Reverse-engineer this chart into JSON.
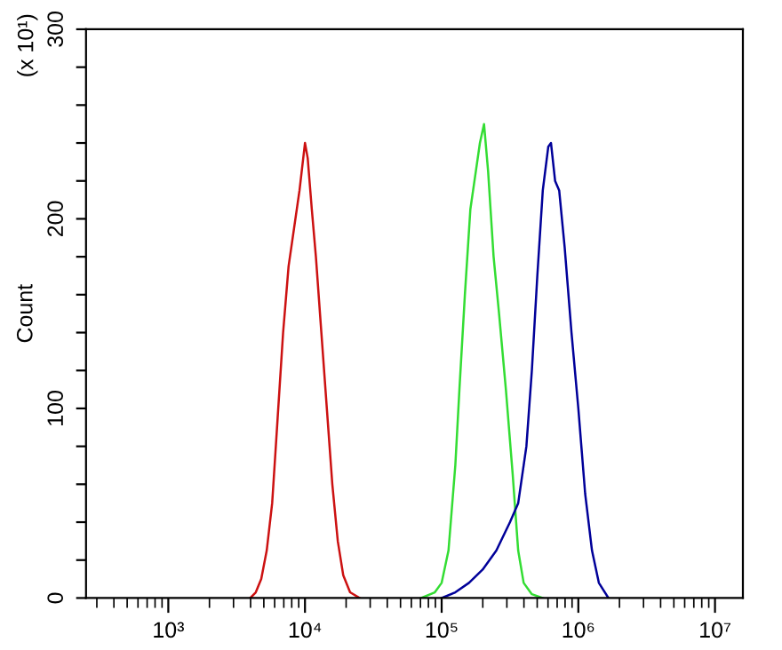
{
  "chart_data": {
    "type": "line",
    "ylabel": "Count",
    "annotations": [
      "(x 10¹)"
    ],
    "log": "x",
    "xlim": [
      250,
      16000000
    ],
    "ylim": [
      0,
      300
    ],
    "xticks": [
      {
        "value": 1000,
        "label": "10³"
      },
      {
        "value": 10000,
        "label": "10⁴"
      },
      {
        "value": 100000,
        "label": "10⁵"
      },
      {
        "value": 1000000,
        "label": "10⁶"
      },
      {
        "value": 10000000,
        "label": "10⁷"
      }
    ],
    "yticks": [
      0,
      {
        "value": 20,
        "label": null
      },
      {
        "value": 40,
        "label": null
      },
      {
        "value": 60,
        "label": null
      },
      {
        "value": 80,
        "label": null
      },
      100,
      {
        "value": 120,
        "label": null
      },
      {
        "value": 140,
        "label": null
      },
      {
        "value": 160,
        "label": null
      },
      {
        "value": 180,
        "label": null
      },
      200,
      {
        "value": 220,
        "label": null
      },
      {
        "value": 240,
        "label": null
      },
      {
        "value": 260,
        "label": null
      },
      {
        "value": 280,
        "label": null
      },
      300
    ],
    "grid": false,
    "legend": false,
    "series": [
      {
        "color": "#cc1111",
        "x": [
          3981,
          4365,
          4786,
          5248,
          5754,
          6310,
          6918,
          7586,
          8318,
          9120,
          10000,
          10470,
          11220,
          12020,
          13180,
          14450,
          15850,
          17380,
          19050,
          21380,
          25120
        ],
        "values": [
          0,
          3,
          10,
          25,
          50,
          95,
          140,
          175,
          195,
          215,
          240,
          232,
          205,
          180,
          140,
          100,
          60,
          30,
          12,
          3,
          0
        ]
      },
      {
        "color": "#33dd33",
        "x": [
          70790,
          89130,
          100000,
          112200,
          125900,
          134900,
          147900,
          162200,
          177800,
          190500,
          204200,
          218800,
          239900,
          263000,
          295100,
          331100,
          363100,
          398100,
          457100,
          549500
        ],
        "values": [
          0,
          3,
          8,
          25,
          70,
          110,
          160,
          205,
          225,
          240,
          250,
          225,
          180,
          150,
          110,
          65,
          25,
          8,
          2,
          0
        ]
      },
      {
        "color": "#000099",
        "x": [
          100000,
          125900,
          158500,
          199500,
          251200,
          316200,
          363100,
          416900,
          457100,
          501200,
          549500,
          602600,
          631000,
          676100,
          724400,
          794300,
          891300,
          1000000,
          1122000,
          1259000,
          1413000,
          1660000
        ],
        "values": [
          0,
          3,
          8,
          15,
          25,
          40,
          50,
          80,
          120,
          170,
          215,
          238,
          240,
          220,
          215,
          185,
          140,
          100,
          55,
          25,
          8,
          0
        ]
      }
    ]
  }
}
